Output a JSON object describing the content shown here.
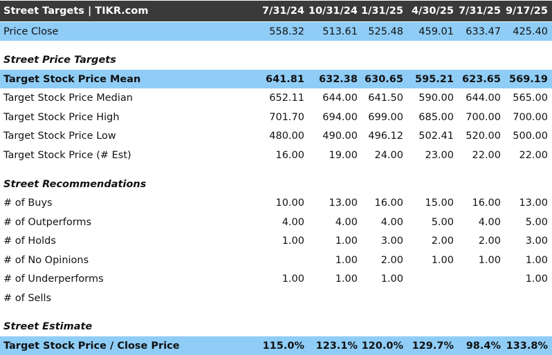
{
  "header": {
    "title": "Street Targets | TIKR.com",
    "dates": [
      "7/31/24",
      "10/31/24",
      "1/31/25",
      "4/30/25",
      "7/31/25",
      "9/17/25"
    ]
  },
  "price_close": {
    "label": "Price Close",
    "values": [
      "558.32",
      "513.61",
      "525.48",
      "459.01",
      "633.47",
      "425.40"
    ]
  },
  "sections": {
    "price_targets": "Street Price Targets",
    "recommendations": "Street Recommendations",
    "estimate": "Street Estimate"
  },
  "targets": [
    {
      "label": "Target Stock Price Mean",
      "values": [
        "641.81",
        "632.38",
        "630.65",
        "595.21",
        "623.65",
        "569.19"
      ]
    },
    {
      "label": "Target Stock Price Median",
      "values": [
        "652.11",
        "644.00",
        "641.50",
        "590.00",
        "644.00",
        "565.00"
      ]
    },
    {
      "label": "Target Stock Price High",
      "values": [
        "701.70",
        "694.00",
        "699.00",
        "685.00",
        "700.00",
        "700.00"
      ]
    },
    {
      "label": "Target Stock Price Low",
      "values": [
        "480.00",
        "490.00",
        "496.12",
        "502.41",
        "520.00",
        "500.00"
      ]
    },
    {
      "label": "Target Stock Price (# Est)",
      "values": [
        "16.00",
        "19.00",
        "24.00",
        "23.00",
        "22.00",
        "22.00"
      ]
    }
  ],
  "recommendations": [
    {
      "label": "# of Buys",
      "values": [
        "10.00",
        "13.00",
        "16.00",
        "15.00",
        "16.00",
        "13.00"
      ]
    },
    {
      "label": "# of Outperforms",
      "values": [
        "4.00",
        "4.00",
        "4.00",
        "5.00",
        "4.00",
        "5.00"
      ]
    },
    {
      "label": "# of Holds",
      "values": [
        "1.00",
        "1.00",
        "3.00",
        "2.00",
        "2.00",
        "3.00"
      ]
    },
    {
      "label": "# of No Opinions",
      "values": [
        "",
        "1.00",
        "2.00",
        "1.00",
        "1.00",
        "1.00"
      ]
    },
    {
      "label": "# of Underperforms",
      "values": [
        "1.00",
        "1.00",
        "1.00",
        "",
        "",
        "1.00"
      ]
    },
    {
      "label": "# of Sells",
      "values": [
        "",
        "",
        "",
        "",
        "",
        ""
      ]
    }
  ],
  "estimate": {
    "label": "Target Stock Price / Close Price",
    "values": [
      "115.0%",
      "123.1%",
      "120.0%",
      "129.7%",
      "98.4%",
      "133.8%"
    ]
  }
}
